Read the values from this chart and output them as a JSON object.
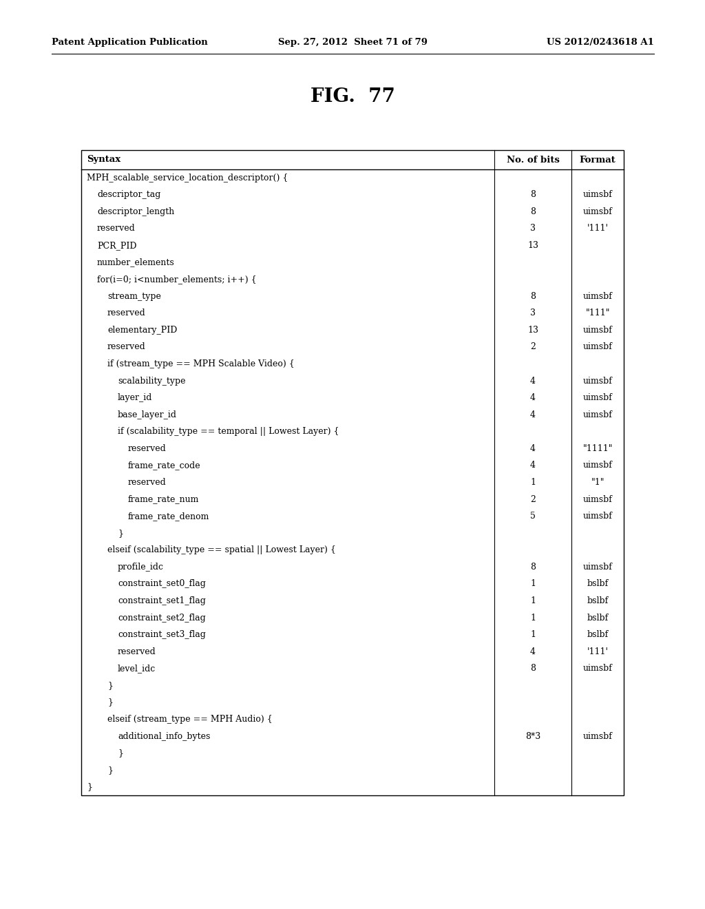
{
  "fig_title": "FIG.  77",
  "header_left": "Patent Application Publication",
  "header_center": "Sep. 27, 2012  Sheet 71 of 79",
  "header_right": "US 2012/0243618 A1",
  "table": {
    "rows": [
      {
        "syntax": "MPH_scalable_service_location_descriptor() {",
        "bits": "",
        "format": "",
        "indent": 0
      },
      {
        "syntax": "descriptor_tag",
        "bits": "8",
        "format": "uimsbf",
        "indent": 1
      },
      {
        "syntax": "descriptor_length",
        "bits": "8",
        "format": "uimsbf",
        "indent": 1
      },
      {
        "syntax": "reserved",
        "bits": "3",
        "format": "'111'",
        "indent": 1
      },
      {
        "syntax": "PCR_PID",
        "bits": "13",
        "format": "",
        "indent": 1
      },
      {
        "syntax": "number_elements",
        "bits": "",
        "format": "",
        "indent": 1
      },
      {
        "syntax": "for(i=0; i<number_elements; i++) {",
        "bits": "",
        "format": "",
        "indent": 1
      },
      {
        "syntax": "stream_type",
        "bits": "8",
        "format": "uimsbf",
        "indent": 2
      },
      {
        "syntax": "reserved",
        "bits": "3",
        "format": "\"111\"",
        "indent": 2
      },
      {
        "syntax": "elementary_PID",
        "bits": "13",
        "format": "uimsbf",
        "indent": 2
      },
      {
        "syntax": "reserved",
        "bits": "2",
        "format": "uimsbf",
        "indent": 2
      },
      {
        "syntax": "if (stream_type == MPH Scalable Video) {",
        "bits": "",
        "format": "",
        "indent": 2
      },
      {
        "syntax": "scalability_type",
        "bits": "4",
        "format": "uimsbf",
        "indent": 3
      },
      {
        "syntax": "layer_id",
        "bits": "4",
        "format": "uimsbf",
        "indent": 3
      },
      {
        "syntax": "base_layer_id",
        "bits": "4",
        "format": "uimsbf",
        "indent": 3
      },
      {
        "syntax": "if (scalability_type == temporal || Lowest Layer) {",
        "bits": "",
        "format": "",
        "indent": 3
      },
      {
        "syntax": "reserved",
        "bits": "4",
        "format": "\"1111\"",
        "indent": 4
      },
      {
        "syntax": "frame_rate_code",
        "bits": "4",
        "format": "uimsbf",
        "indent": 4
      },
      {
        "syntax": "reserved",
        "bits": "1",
        "format": "\"1\"",
        "indent": 4
      },
      {
        "syntax": "frame_rate_num",
        "bits": "2",
        "format": "uimsbf",
        "indent": 4
      },
      {
        "syntax": "frame_rate_denom",
        "bits": "5",
        "format": "uimsbf",
        "indent": 4
      },
      {
        "syntax": "}",
        "bits": "",
        "format": "",
        "indent": 3
      },
      {
        "syntax": "elseif (scalability_type == spatial || Lowest Layer) {",
        "bits": "",
        "format": "",
        "indent": 2
      },
      {
        "syntax": "profile_idc",
        "bits": "8",
        "format": "uimsbf",
        "indent": 3
      },
      {
        "syntax": "constraint_set0_flag",
        "bits": "1",
        "format": "bslbf",
        "indent": 3
      },
      {
        "syntax": "constraint_set1_flag",
        "bits": "1",
        "format": "bslbf",
        "indent": 3
      },
      {
        "syntax": "constraint_set2_flag",
        "bits": "1",
        "format": "bslbf",
        "indent": 3
      },
      {
        "syntax": "constraint_set3_flag",
        "bits": "1",
        "format": "bslbf",
        "indent": 3
      },
      {
        "syntax": "reserved",
        "bits": "4",
        "format": "'111'",
        "indent": 3
      },
      {
        "syntax": "level_idc",
        "bits": "8",
        "format": "uimsbf",
        "indent": 3
      },
      {
        "syntax": "}",
        "bits": "",
        "format": "",
        "indent": 2
      },
      {
        "syntax": "}",
        "bits": "",
        "format": "",
        "indent": 2
      },
      {
        "syntax": "elseif (stream_type == MPH Audio) {",
        "bits": "",
        "format": "",
        "indent": 2
      },
      {
        "syntax": "additional_info_bytes",
        "bits": "8*3",
        "format": "uimsbf",
        "indent": 3
      },
      {
        "syntax": "}",
        "bits": "",
        "format": "",
        "indent": 3
      },
      {
        "syntax": "}",
        "bits": "",
        "format": "",
        "indent": 2
      },
      {
        "syntax": "}",
        "bits": "",
        "format": "",
        "indent": 0
      }
    ]
  },
  "background_color": "#ffffff",
  "text_color": "#000000",
  "table_border_color": "#000000",
  "font_size": 9.0,
  "header_font_size": 9.5,
  "title_font_size": 20,
  "indent_size": 15
}
